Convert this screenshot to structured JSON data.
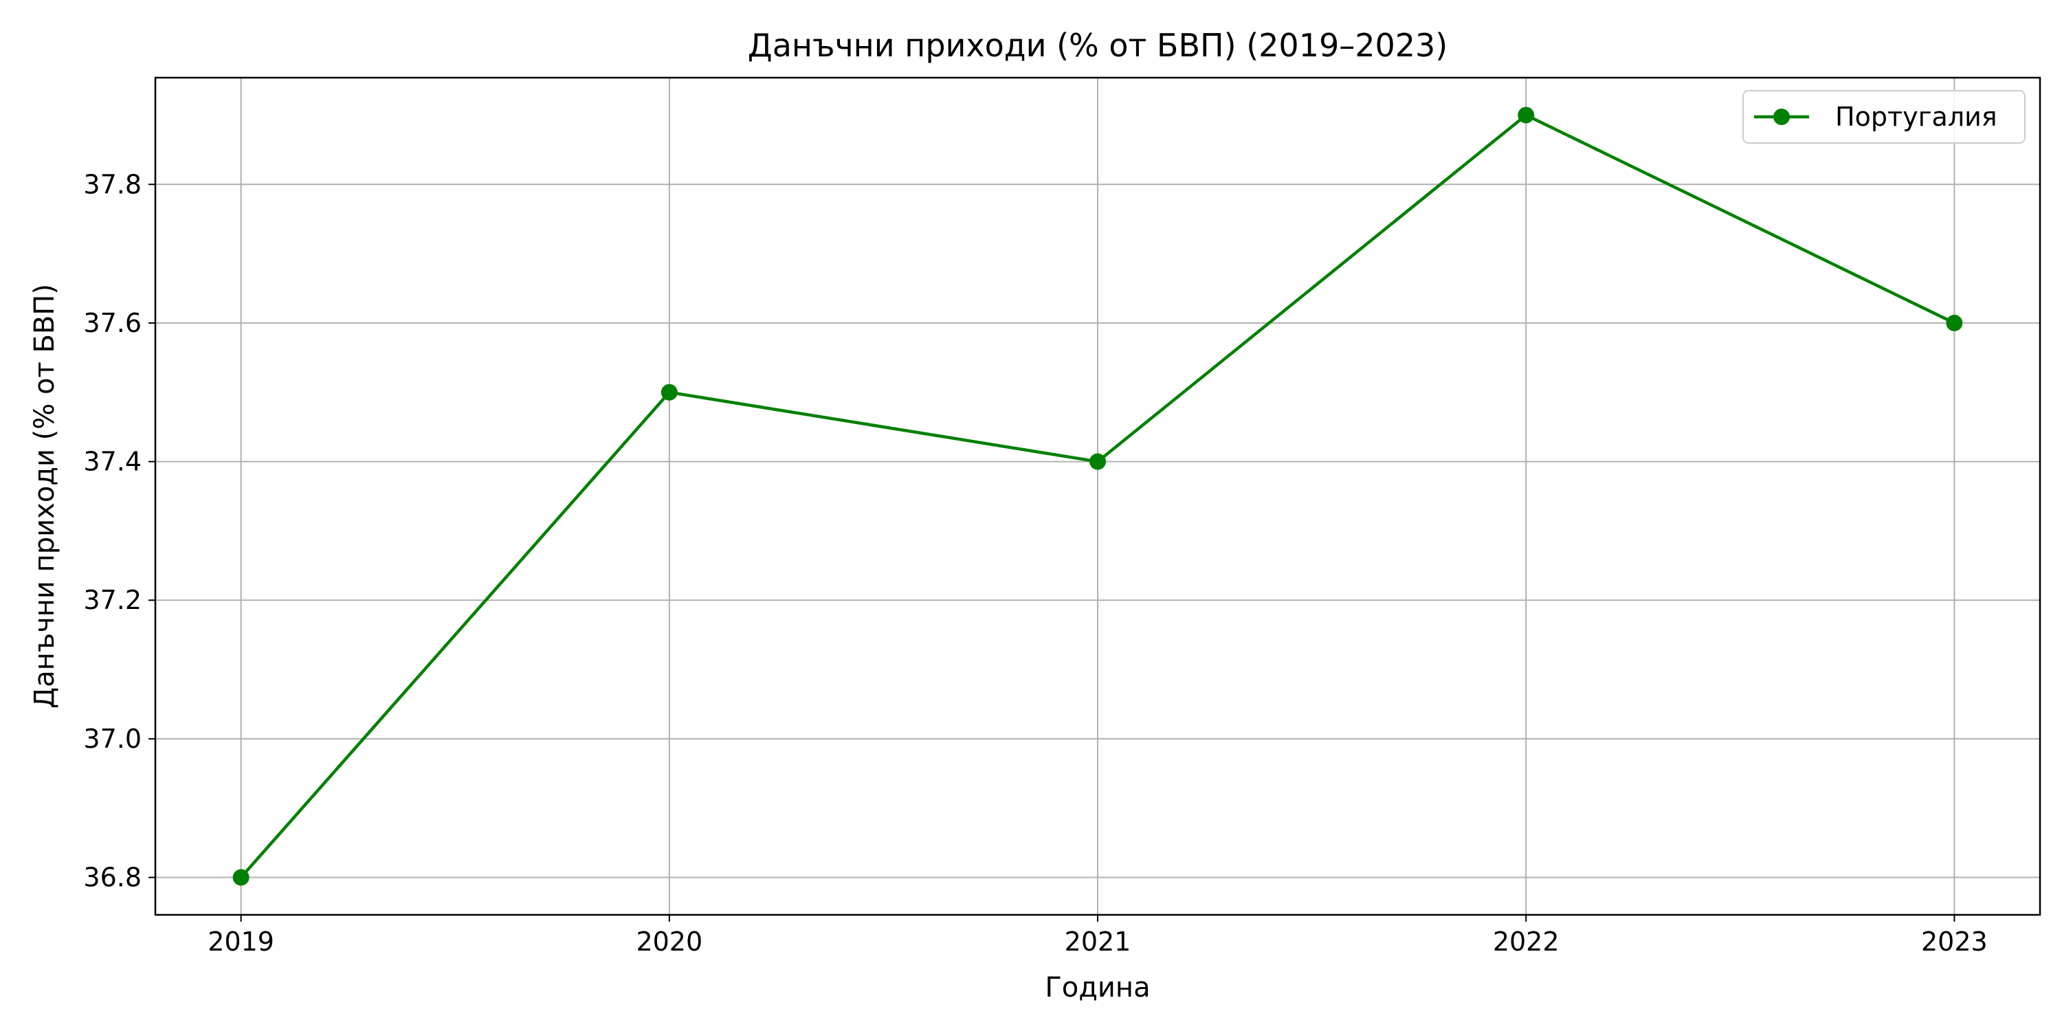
{
  "chart_data": {
    "type": "line",
    "title": "Данъчни приходи (% от БВП) (2019–2023)",
    "xlabel": "Година",
    "ylabel": "Данъчни приходи (% от БВП)",
    "x": [
      "2019",
      "2020",
      "2021",
      "2022",
      "2023"
    ],
    "series": [
      {
        "name": "Португалия",
        "values": [
          36.8,
          37.5,
          37.4,
          37.9,
          37.6
        ],
        "color": "#008000",
        "marker": "circle"
      }
    ],
    "ylim": [
      36.746,
      37.954
    ],
    "yticks": [
      "36.8",
      "37.0",
      "37.2",
      "37.4",
      "37.6",
      "37.8"
    ],
    "grid": true,
    "legend_position": "top-right"
  }
}
